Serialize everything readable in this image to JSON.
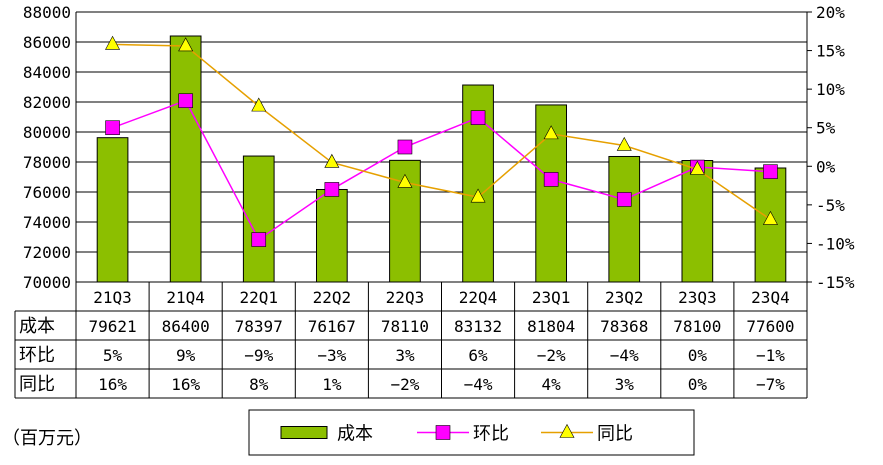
{
  "chart_data": {
    "type": "bar",
    "categories": [
      "21Q3",
      "21Q4",
      "22Q1",
      "22Q2",
      "22Q3",
      "22Q4",
      "23Q1",
      "23Q2",
      "23Q3",
      "23Q4"
    ],
    "series": [
      {
        "name": "成本",
        "type": "bar",
        "axis": "left",
        "color": "#8cbf00",
        "values": [
          79621,
          86400,
          78397,
          76167,
          78110,
          83132,
          81804,
          78368,
          78100,
          77600
        ]
      },
      {
        "name": "环比",
        "type": "line",
        "axis": "right",
        "color": "#ff00ff",
        "marker": "square",
        "values": [
          5,
          8.5,
          -9.5,
          -3,
          2.5,
          6.3,
          -1.7,
          -4.3,
          -0.1,
          -0.7
        ]
      },
      {
        "name": "同比",
        "type": "line",
        "axis": "right",
        "color": "#e6a000",
        "marker": "triangle",
        "values": [
          15.8,
          15.6,
          7.8,
          0.5,
          -2.1,
          -4,
          4.2,
          2.7,
          -0.4,
          -6.9
        ]
      }
    ],
    "left_axis": {
      "min": 70000,
      "max": 88000,
      "step": 2000,
      "tick_labels": [
        "70000",
        "72000",
        "74000",
        "76000",
        "78000",
        "80000",
        "82000",
        "84000",
        "86000",
        "88000"
      ]
    },
    "right_axis": {
      "min": -15,
      "max": 20,
      "step": 5,
      "tick_labels": [
        "-15%",
        "-10%",
        "-5%",
        "0%",
        "5%",
        "10%",
        "15%",
        "20%"
      ]
    },
    "table": {
      "rows": [
        {
          "header": "成本",
          "cells": [
            "79621",
            "86400",
            "78397",
            "76167",
            "78110",
            "83132",
            "81804",
            "78368",
            "78100",
            "77600"
          ]
        },
        {
          "header": "环比",
          "cells": [
            "5%",
            "9%",
            "-9%",
            "-3%",
            "3%",
            "6%",
            "-2%",
            "-4%",
            "0%",
            "-1%"
          ]
        },
        {
          "header": "同比",
          "cells": [
            "16%",
            "16%",
            "8%",
            "1%",
            "-2%",
            "-4%",
            "4%",
            "3%",
            "0%",
            "-7%"
          ]
        }
      ]
    },
    "unit_note": "（百万元）",
    "legend": {
      "placement": "bottom",
      "entries": [
        "成本",
        "环比",
        "同比"
      ]
    },
    "grid": true
  }
}
